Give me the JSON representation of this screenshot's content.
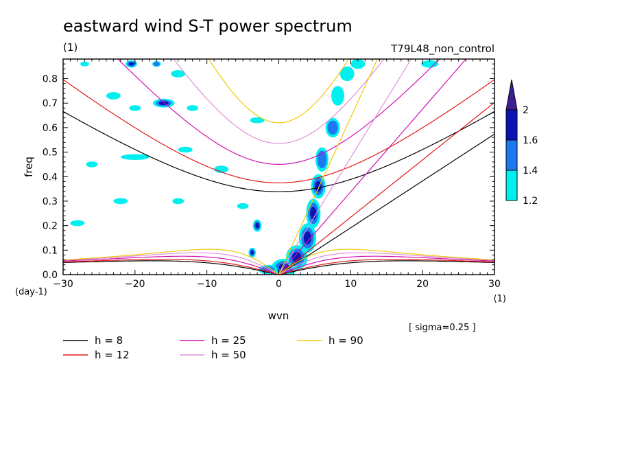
{
  "chart_data": {
    "type": "heatmap",
    "title": "eastward wind S-T power spectrum",
    "subtitle_left": "(1)",
    "subtitle_right": "T79L48_non_control",
    "xlabel": "wvn",
    "ylabel": "freq",
    "x_unit": "(1)",
    "y_unit": "(day-1)",
    "xlim": [
      -30,
      30
    ],
    "ylim": [
      0,
      0.88
    ],
    "x_ticks": [
      "-30",
      "-20",
      "-10",
      "0",
      "10",
      "20",
      "30"
    ],
    "y_ticks": [
      "0.0",
      "0.1",
      "0.2",
      "0.3",
      "0.4",
      "0.5",
      "0.6",
      "0.7",
      "0.8"
    ],
    "annotation": "[ sigma=0.25 ]",
    "colorbar": {
      "levels": [
        "1.2",
        "1.4",
        "1.6",
        "2"
      ],
      "colors": [
        "#00f0f0",
        "#1e78f0",
        "#0a14b4",
        "#3c1e96"
      ]
    },
    "shading_colors": {
      "c1": "#00f0f0",
      "c2": "#1e78f0",
      "c3": "#0a14b4",
      "c4": "#3c1e96"
    },
    "dispersion_curves": [
      {
        "label": "h =  8",
        "h": 8,
        "color": "#000000"
      },
      {
        "label": "h = 12",
        "h": 12,
        "color": "#e01818"
      },
      {
        "label": "h = 25",
        "h": 25,
        "color": "#d010b0"
      },
      {
        "label": "h = 50",
        "h": 50,
        "color": "#e090d8"
      },
      {
        "label": "h = 90",
        "h": 90,
        "color": "#f0c800"
      }
    ],
    "spectral_blobs": [
      {
        "x": -27,
        "y": 0.86,
        "rx": 0.6,
        "ry": 0.01,
        "level": 1
      },
      {
        "x": -20.5,
        "y": 0.86,
        "rx": 0.8,
        "ry": 0.015,
        "level": 3
      },
      {
        "x": -17,
        "y": 0.86,
        "rx": 0.6,
        "ry": 0.012,
        "level": 2
      },
      {
        "x": -16,
        "y": 0.7,
        "rx": 1.5,
        "ry": 0.018,
        "level": 3
      },
      {
        "x": -14,
        "y": 0.82,
        "rx": 1.0,
        "ry": 0.015,
        "level": 1
      },
      {
        "x": -23,
        "y": 0.73,
        "rx": 1.0,
        "ry": 0.015,
        "level": 1
      },
      {
        "x": -20,
        "y": 0.68,
        "rx": 0.8,
        "ry": 0.012,
        "level": 1
      },
      {
        "x": -12,
        "y": 0.68,
        "rx": 0.8,
        "ry": 0.012,
        "level": 1
      },
      {
        "x": -13,
        "y": 0.51,
        "rx": 1.0,
        "ry": 0.012,
        "level": 1
      },
      {
        "x": -8,
        "y": 0.43,
        "rx": 1.0,
        "ry": 0.015,
        "level": 1
      },
      {
        "x": -20,
        "y": 0.48,
        "rx": 2.0,
        "ry": 0.012,
        "level": 1
      },
      {
        "x": -26,
        "y": 0.45,
        "rx": 0.8,
        "ry": 0.012,
        "level": 1
      },
      {
        "x": -14,
        "y": 0.3,
        "rx": 0.8,
        "ry": 0.012,
        "level": 1
      },
      {
        "x": -22,
        "y": 0.3,
        "rx": 1.0,
        "ry": 0.012,
        "level": 1
      },
      {
        "x": -28,
        "y": 0.21,
        "rx": 1.0,
        "ry": 0.012,
        "level": 1
      },
      {
        "x": -3,
        "y": 0.63,
        "rx": 1.0,
        "ry": 0.012,
        "level": 1
      },
      {
        "x": -5,
        "y": 0.28,
        "rx": 0.8,
        "ry": 0.012,
        "level": 1
      },
      {
        "x": -3,
        "y": 0.2,
        "rx": 0.6,
        "ry": 0.025,
        "level": 3
      },
      {
        "x": -3.7,
        "y": 0.09,
        "rx": 0.5,
        "ry": 0.02,
        "level": 3
      },
      {
        "x": 0.8,
        "y": 0.03,
        "rx": 1.8,
        "ry": 0.035,
        "level": 3
      },
      {
        "x": -1.5,
        "y": 0.02,
        "rx": 1.3,
        "ry": 0.02,
        "level": 2
      },
      {
        "x": 2.5,
        "y": 0.07,
        "rx": 1.5,
        "ry": 0.05,
        "level": 3
      },
      {
        "x": 4.0,
        "y": 0.15,
        "rx": 1.2,
        "ry": 0.06,
        "level": 3
      },
      {
        "x": 4.8,
        "y": 0.25,
        "rx": 1.0,
        "ry": 0.06,
        "level": 3
      },
      {
        "x": 5.5,
        "y": 0.36,
        "rx": 1.0,
        "ry": 0.05,
        "level": 3
      },
      {
        "x": 6.0,
        "y": 0.47,
        "rx": 0.9,
        "ry": 0.05,
        "level": 2
      },
      {
        "x": 7.5,
        "y": 0.6,
        "rx": 1.0,
        "ry": 0.04,
        "level": 2
      },
      {
        "x": 8.2,
        "y": 0.73,
        "rx": 0.9,
        "ry": 0.04,
        "level": 1
      },
      {
        "x": 9.5,
        "y": 0.82,
        "rx": 1.0,
        "ry": 0.03,
        "level": 1
      },
      {
        "x": 11,
        "y": 0.86,
        "rx": 1.0,
        "ry": 0.02,
        "level": 1
      },
      {
        "x": 21,
        "y": 0.86,
        "rx": 1.2,
        "ry": 0.015,
        "level": 1
      }
    ]
  }
}
